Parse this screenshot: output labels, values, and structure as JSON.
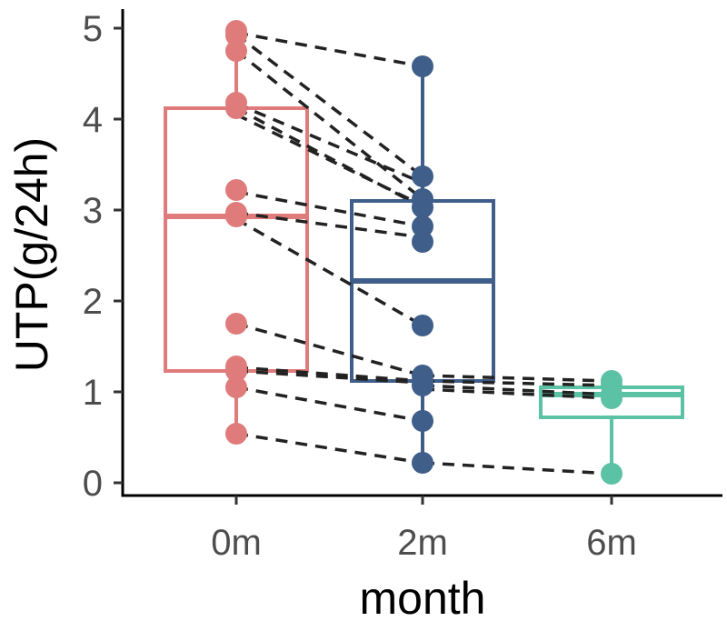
{
  "chart_data": {
    "type": "boxplot",
    "xlabel": "month",
    "ylabel": "UTP(g/24h)",
    "categories": [
      "0m",
      "2m",
      "6m"
    ],
    "ylim": [
      -0.1,
      5.2
    ],
    "yticks": [
      0,
      1,
      2,
      3,
      4,
      5
    ],
    "grid": false,
    "legend": "none",
    "colors": {
      "0m": "#E07B7B",
      "2m": "#3F5E8A",
      "6m": "#5CC2A5",
      "line": "#222222"
    },
    "boxes": [
      {
        "category": "0m",
        "q1": 1.23,
        "median": 2.93,
        "q3": 4.12,
        "min": 0.54,
        "max": 4.97
      },
      {
        "category": "2m",
        "q1": 1.12,
        "median": 2.22,
        "q3": 3.1,
        "min": 0.22,
        "max": 4.58
      },
      {
        "category": "6m",
        "q1": 0.72,
        "median": 0.97,
        "q3": 1.05,
        "min": 0.1,
        "max": 1.12
      }
    ],
    "points": [
      {
        "category": "0m",
        "values": [
          4.97,
          4.92,
          4.75,
          4.18,
          4.12,
          3.22,
          2.97,
          2.93,
          1.75,
          1.28,
          1.23,
          1.05,
          0.54
        ]
      },
      {
        "category": "2m",
        "values": [
          4.58,
          3.37,
          3.12,
          3.03,
          2.82,
          2.65,
          1.73,
          1.18,
          1.12,
          1.07,
          0.68,
          0.22
        ]
      },
      {
        "category": "6m",
        "values": [
          1.12,
          1.07,
          0.97,
          0.93,
          0.1
        ]
      }
    ],
    "paired_lines": [
      {
        "x1": "0m",
        "y1": 4.95,
        "x2": "2m",
        "y2": 4.58
      },
      {
        "x1": "0m",
        "y1": 4.93,
        "x2": "2m",
        "y2": 3.37
      },
      {
        "x1": "0m",
        "y1": 4.75,
        "x2": "2m",
        "y2": 3.12
      },
      {
        "x1": "0m",
        "y1": 4.17,
        "x2": "2m",
        "y2": 3.3
      },
      {
        "x1": "0m",
        "y1": 4.12,
        "x2": "2m",
        "y2": 3.03
      },
      {
        "x1": "0m",
        "y1": 4.05,
        "x2": "2m",
        "y2": 3.05
      },
      {
        "x1": "0m",
        "y1": 3.2,
        "x2": "2m",
        "y2": 2.82
      },
      {
        "x1": "0m",
        "y1": 2.97,
        "x2": "2m",
        "y2": 2.7
      },
      {
        "x1": "0m",
        "y1": 2.9,
        "x2": "2m",
        "y2": 1.73
      },
      {
        "x1": "0m",
        "y1": 1.75,
        "x2": "2m",
        "y2": 1.18
      },
      {
        "x1": "0m",
        "y1": 1.27,
        "x2": "2m",
        "y2": 1.12
      },
      {
        "x1": "0m",
        "y1": 1.23,
        "x2": "2m",
        "y2": 1.1
      },
      {
        "x1": "0m",
        "y1": 1.05,
        "x2": "2m",
        "y2": 0.68
      },
      {
        "x1": "0m",
        "y1": 0.54,
        "x2": "2m",
        "y2": 0.22
      },
      {
        "x1": "2m",
        "y1": 1.18,
        "x2": "6m",
        "y2": 1.12
      },
      {
        "x1": "2m",
        "y1": 1.12,
        "x2": "6m",
        "y2": 1.07
      },
      {
        "x1": "2m",
        "y1": 1.07,
        "x2": "6m",
        "y2": 0.97
      },
      {
        "x1": "2m",
        "y1": 1.03,
        "x2": "6m",
        "y2": 0.93
      },
      {
        "x1": "2m",
        "y1": 0.22,
        "x2": "6m",
        "y2": 0.1
      }
    ]
  }
}
